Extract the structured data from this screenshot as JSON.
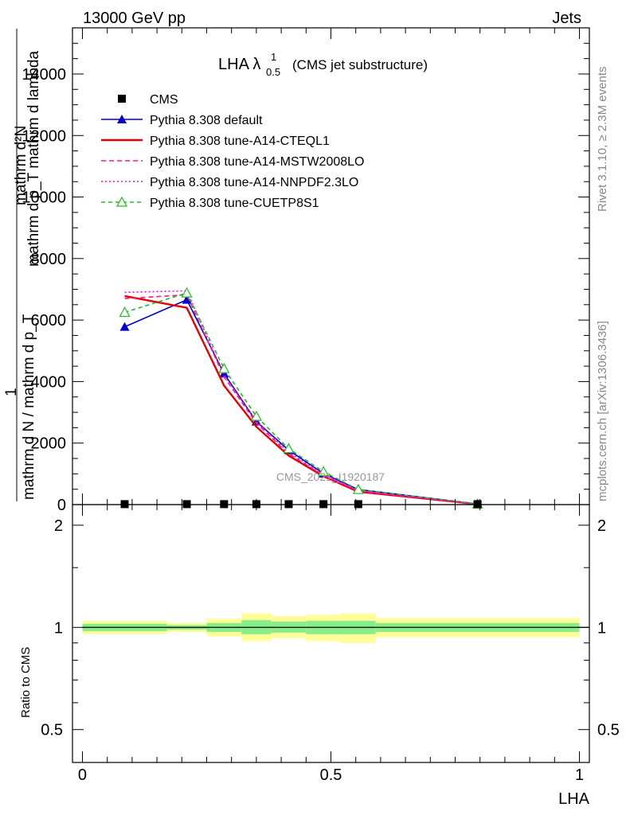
{
  "header": {
    "beam": "13000 GeV pp",
    "category": "Jets"
  },
  "side_labels": {
    "rivet": "Rivet 3.1.10, ≥ 2.3M events",
    "mcplots": "mcplots.cern.ch [arXiv:1306.3436]"
  },
  "watermark": "CMS_2021_I1920187",
  "chart_data": [
    {
      "type": "line",
      "title_main": "LHA λ",
      "title_sup": "1",
      "title_sub": "0.5",
      "title_suffix": "(CMS jet substructure)",
      "ylabel_top": "mathrm d²N",
      "ylabel_top2": "mathrm d p_T mathrm d lambda",
      "ylabel_frac_num": "1",
      "ylabel_bottom": "mathrm d N / mathrm d p_T",
      "ylim": [
        0,
        15500
      ],
      "xlim": [
        -0.02,
        1.02
      ],
      "y_ticks": [
        0,
        2000,
        4000,
        6000,
        8000,
        10000,
        12000,
        14000
      ],
      "y_tick_labels": [
        "0",
        "2000",
        "4000",
        "6000",
        "8000",
        "10000",
        "12000",
        "14000"
      ],
      "legend_position": "top-left",
      "x": [
        0.085,
        0.21,
        0.285,
        0.35,
        0.415,
        0.485,
        0.555,
        0.795
      ],
      "series": [
        {
          "name": "CMS",
          "color": "#000000",
          "marker": "square",
          "dash": "none",
          "values": [
            15,
            15,
            15,
            15,
            15,
            15,
            15,
            15
          ]
        },
        {
          "name": "Pythia 8.308 default",
          "color": "#0000cc",
          "marker": "triangle",
          "dash": "none",
          "values": [
            5780,
            6660,
            4260,
            2700,
            1770,
            1010,
            490,
            20
          ]
        },
        {
          "name": "Pythia 8.308 tune-A14-CTEQL1",
          "color": "#e60000",
          "marker": "none",
          "dash": "none",
          "values": [
            6780,
            6400,
            3870,
            2530,
            1590,
            920,
            420,
            15
          ]
        },
        {
          "name": "Pythia 8.308 tune-A14-MSTW2008LO",
          "color": "#ff1493",
          "marker": "none",
          "dash": "6,4",
          "values": [
            6700,
            6820,
            4150,
            2650,
            1650,
            950,
            440,
            15
          ]
        },
        {
          "name": "Pythia 8.308 tune-A14-NNPDF2.3LO",
          "color": "#ff00ff",
          "marker": "none",
          "dash": "2,3",
          "values": [
            6900,
            6950,
            4200,
            2700,
            1700,
            980,
            450,
            15
          ]
        },
        {
          "name": "Pythia 8.308 tune-CUETP8S1",
          "color": "#22bb22",
          "marker": "open-triangle",
          "dash": "5,4",
          "values": [
            6250,
            6880,
            4420,
            2870,
            1820,
            1070,
            490,
            20
          ]
        }
      ]
    },
    {
      "type": "area",
      "xlabel": "LHA",
      "ylabel": "Ratio to CMS",
      "ylim": [
        0.4,
        2.3
      ],
      "y_ticks": [
        0.5,
        1,
        2
      ],
      "y_tick_labels": [
        "0.5",
        "1",
        "2"
      ],
      "x_ticks": [
        0,
        0.5,
        1
      ],
      "x_tick_labels": [
        "0",
        "0.5",
        "1"
      ],
      "bins": [
        [
          0.0,
          0.17
        ],
        [
          0.17,
          0.25
        ],
        [
          0.25,
          0.32
        ],
        [
          0.32,
          0.38
        ],
        [
          0.38,
          0.45
        ],
        [
          0.45,
          0.52
        ],
        [
          0.52,
          0.59
        ],
        [
          0.59,
          1.0
        ]
      ],
      "stat_band": [
        [
          0.975,
          1.025
        ],
        [
          0.985,
          1.015
        ],
        [
          0.97,
          1.03
        ],
        [
          0.955,
          1.05
        ],
        [
          0.965,
          1.04
        ],
        [
          0.955,
          1.045
        ],
        [
          0.955,
          1.045
        ],
        [
          0.97,
          1.03
        ]
      ],
      "total_band": [
        [
          0.955,
          1.045
        ],
        [
          0.97,
          1.03
        ],
        [
          0.94,
          1.06
        ],
        [
          0.91,
          1.1
        ],
        [
          0.93,
          1.08
        ],
        [
          0.91,
          1.09
        ],
        [
          0.9,
          1.1
        ],
        [
          0.935,
          1.065
        ]
      ],
      "stat_color": "#88ee88",
      "total_color": "#ffff99",
      "reference": 1
    }
  ]
}
